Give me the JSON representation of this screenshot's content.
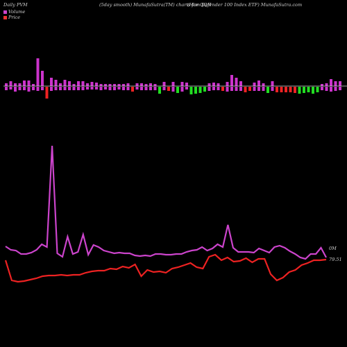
{
  "header": {
    "left": "Daily PVM",
    "middle": "(5day smooth) MunafaSutra(TM) charts for QQH",
    "right": "(Hcm Defender 100  Index ETF) MunafaSutra.com"
  },
  "legend": {
    "volume_label": "Volume",
    "price_label": "Price",
    "volume_color": "#cc44cc",
    "price_color": "#ee3333"
  },
  "colors": {
    "background": "#000000",
    "volume_line": "#cc44cc",
    "price_line": "#ee2222",
    "bar_up": "#cc33cc",
    "bar_down_red": "#ee2222",
    "bar_down_green": "#22dd22",
    "baseline": "#dddddd"
  },
  "chart_data": {
    "type": "line",
    "title": "",
    "series_labels": {
      "volume_last": "0M",
      "price_last": "79.51"
    },
    "volume_bars": {
      "direction": [
        1,
        1,
        1,
        1,
        1,
        1,
        1,
        1,
        1,
        -1,
        1,
        1,
        1,
        1,
        1,
        1,
        1,
        1,
        1,
        1,
        1,
        1,
        1,
        1,
        1,
        1,
        1,
        1,
        -1,
        1,
        1,
        1,
        1,
        1,
        -1,
        1,
        -1,
        1,
        -1,
        1,
        1,
        -1,
        -1,
        -1,
        -1,
        1,
        1,
        1,
        -1,
        1,
        1,
        1,
        1,
        -1,
        -1,
        1,
        1,
        1,
        -1,
        1,
        -1,
        -1,
        -1,
        -1,
        -1,
        -1,
        -1,
        -1,
        -1,
        -1,
        1,
        1,
        1,
        1,
        1
      ],
      "color": [
        "up",
        "up",
        "up",
        "up",
        "up",
        "up",
        "up",
        "up",
        "up",
        "red",
        "up",
        "up",
        "up",
        "up",
        "up",
        "up",
        "up",
        "up",
        "up",
        "up",
        "up",
        "up",
        "up",
        "up",
        "up",
        "up",
        "up",
        "up",
        "red",
        "up",
        "up",
        "up",
        "up",
        "up",
        "green",
        "up",
        "red",
        "up",
        "green",
        "up",
        "up",
        "green",
        "green",
        "green",
        "green",
        "up",
        "up",
        "up",
        "red",
        "up",
        "up",
        "up",
        "up",
        "red",
        "red",
        "up",
        "up",
        "up",
        "green",
        "up",
        "red",
        "red",
        "red",
        "red",
        "red",
        "green",
        "green",
        "green",
        "green",
        "green",
        "up",
        "up",
        "up",
        "up",
        "up"
      ],
      "up_height": [
        4,
        7,
        4,
        4,
        8,
        8,
        3,
        40,
        22,
        0,
        12,
        9,
        4,
        9,
        7,
        3,
        7,
        7,
        4,
        6,
        5,
        3,
        3,
        3,
        3,
        3,
        3,
        4,
        0,
        4,
        4,
        3,
        4,
        3,
        0,
        6,
        0,
        6,
        0,
        6,
        5,
        0,
        0,
        0,
        0,
        4,
        5,
        4,
        0,
        6,
        16,
        12,
        7,
        0,
        0,
        5,
        8,
        4,
        0,
        7,
        0,
        0,
        0,
        0,
        0,
        0,
        0,
        0,
        0,
        0,
        3,
        4,
        10,
        7,
        7
      ],
      "down_height": [
        5,
        4,
        7,
        5,
        5,
        7,
        5,
        6,
        5,
        17,
        6,
        5,
        5,
        5,
        5,
        5,
        5,
        5,
        4,
        4,
        4,
        5,
        4,
        5,
        5,
        4,
        5,
        5,
        7,
        4,
        5,
        5,
        5,
        5,
        10,
        5,
        6,
        7,
        9,
        7,
        4,
        11,
        10,
        9,
        7,
        6,
        5,
        5,
        6,
        7,
        6,
        6,
        6,
        8,
        6,
        6,
        6,
        6,
        9,
        6,
        8,
        8,
        8,
        8,
        9,
        10,
        9,
        8,
        10,
        8,
        5,
        6,
        7,
        6,
        5
      ]
    },
    "volume_line": [
      355,
      360,
      361,
      366,
      366,
      364,
      360,
      352,
      356,
      210,
      365,
      370,
      341,
      366,
      363,
      338,
      367,
      353,
      356,
      361,
      363,
      365,
      364,
      365,
      365,
      368,
      369,
      368,
      369,
      366,
      366,
      367,
      367,
      366,
      366,
      363,
      361,
      360,
      356,
      361,
      358,
      352,
      356,
      324,
      357,
      363,
      363,
      363,
      364,
      358,
      361,
      364,
      356,
      354,
      357,
      362,
      366,
      371,
      373,
      366,
      366,
      357,
      371
    ],
    "price_line": [
      375,
      404,
      406,
      405,
      403,
      401,
      398,
      397,
      397,
      396,
      397,
      396,
      396,
      393,
      391,
      390,
      390,
      387,
      388,
      384,
      386,
      381,
      398,
      389,
      392,
      391,
      393,
      387,
      385,
      382,
      379,
      385,
      387,
      370,
      367,
      375,
      371,
      377,
      376,
      372,
      378,
      373,
      373,
      395,
      404,
      400,
      392,
      389,
      382,
      379,
      375,
      375,
      374
    ]
  }
}
